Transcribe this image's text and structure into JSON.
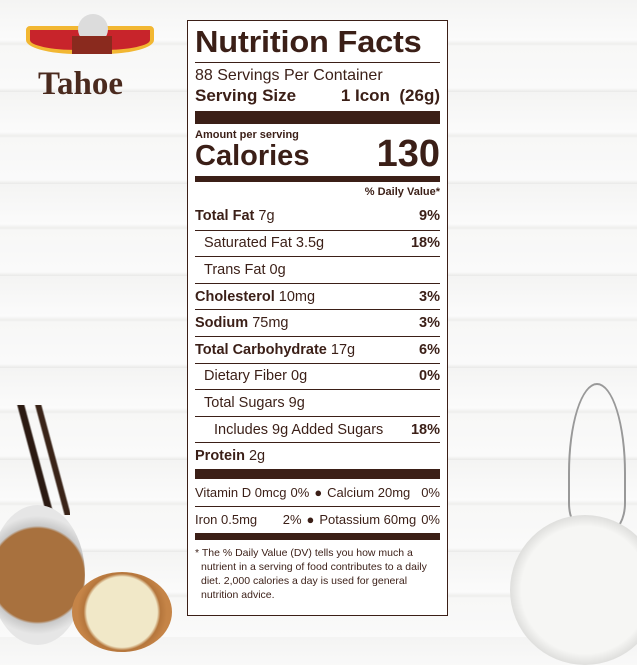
{
  "brand": {
    "name": "Tahoe"
  },
  "label": {
    "title": "Nutrition Facts",
    "servings": "88 Servings Per Container",
    "serving_size_label": "Serving Size",
    "serving_size_value": "1 Icon  (26g)",
    "amount_per_serving": "Amount per serving",
    "calories_label": "Calories",
    "calories_value": "130",
    "dv_header": "% Daily Value*",
    "nutrients": [
      {
        "name": "Total Fat",
        "amount": "7g",
        "dv": "9%"
      },
      {
        "name": "Saturated Fat",
        "amount": "3.5g",
        "dv": "18%"
      },
      {
        "name": "Trans Fat",
        "amount": "0g",
        "dv": ""
      },
      {
        "name": "Cholesterol",
        "amount": "10mg",
        "dv": "3%"
      },
      {
        "name": "Sodium",
        "amount": "75mg",
        "dv": "3%"
      },
      {
        "name": "Total Carbohydrate",
        "amount": "17g",
        "dv": "6%"
      },
      {
        "name": "Dietary Fiber",
        "amount": "0g",
        "dv": "0%"
      },
      {
        "name": "Total Sugars",
        "amount": "9g",
        "dv": ""
      },
      {
        "name": "Includes 9g Added Sugars",
        "amount": "",
        "dv": "18%"
      },
      {
        "name": "Protein",
        "amount": "2g",
        "dv": ""
      }
    ],
    "vitamins": [
      {
        "left": "Vitamin D 0mcg",
        "left_dv": "0%",
        "right": "Calcium 20mg",
        "right_dv": "0%"
      },
      {
        "left": "Iron 0.5mg",
        "left_dv": "2%",
        "right": "Potassium 60mg",
        "right_dv": "0%"
      }
    ],
    "footnote": "* The % Daily Value (DV) tells you how much a nutrient in a serving of food contributes to a daily diet. 2,000 calories a day is used for general nutrition advice."
  },
  "colors": {
    "label_ink": "#3b1f17",
    "banner_red": "#c8242b",
    "banner_gold": "#f2b732"
  }
}
